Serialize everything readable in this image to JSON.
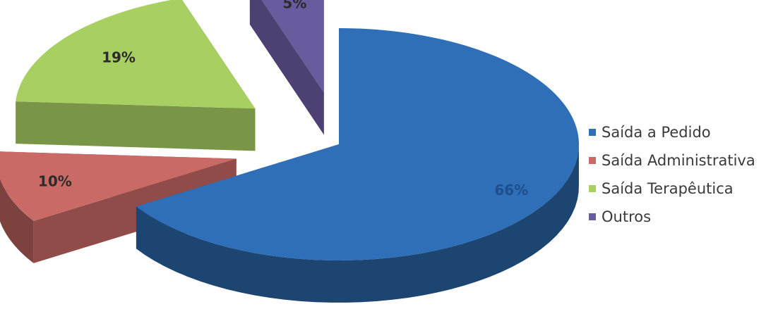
{
  "chart_data": {
    "type": "pie",
    "title": "",
    "categories": [
      "Saída a Pedido",
      "Saída Administrativa",
      "Saída Terapêutica",
      "Outros"
    ],
    "values": [
      66,
      10,
      19,
      5
    ],
    "labels": [
      "66%",
      "10%",
      "19%",
      "5%"
    ],
    "colors": [
      "#2f6fb8",
      "#c96a66",
      "#a8cf62",
      "#6a5a9e"
    ],
    "exploded": [
      false,
      true,
      true,
      true
    ],
    "style": "3d",
    "legend_position": "right"
  }
}
